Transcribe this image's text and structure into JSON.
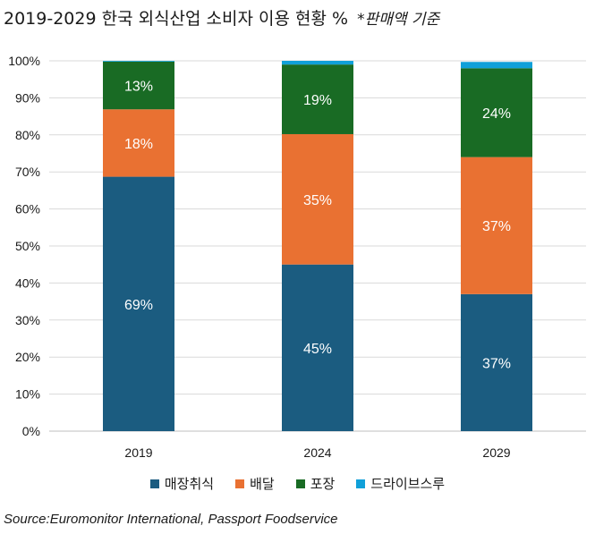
{
  "title": "2019-2029 한국 외식산업 소비자 이용 현황 %",
  "title_note": "*판매액 기준",
  "source": "Source:Euromonitor International, Passport Foodservice",
  "chart_data": {
    "type": "bar",
    "stacked": true,
    "categories": [
      "2019",
      "2024",
      "2029"
    ],
    "series": [
      {
        "name": "매장취식",
        "color": "#1b5c80",
        "values": [
          68.7,
          45,
          37
        ],
        "labels": [
          "69%",
          "45%",
          "37%"
        ]
      },
      {
        "name": "배달",
        "color": "#e97132",
        "values": [
          18.2,
          35.2,
          37
        ],
        "labels": [
          "18%",
          "35%",
          "37%"
        ]
      },
      {
        "name": "포장",
        "color": "#196b24",
        "values": [
          12.9,
          18.8,
          24
        ],
        "labels": [
          "13%",
          "19%",
          "24%"
        ]
      },
      {
        "name": "드라이브스루",
        "color": "#10a0d9",
        "values": [
          0.2,
          1.0,
          1.7
        ],
        "labels": [
          "",
          "",
          ""
        ]
      }
    ],
    "ylim": [
      0,
      100
    ],
    "yticks": [
      "0%",
      "10%",
      "20%",
      "30%",
      "40%",
      "50%",
      "60%",
      "70%",
      "80%",
      "90%",
      "100%"
    ],
    "grid": true,
    "legend_position": "bottom"
  }
}
